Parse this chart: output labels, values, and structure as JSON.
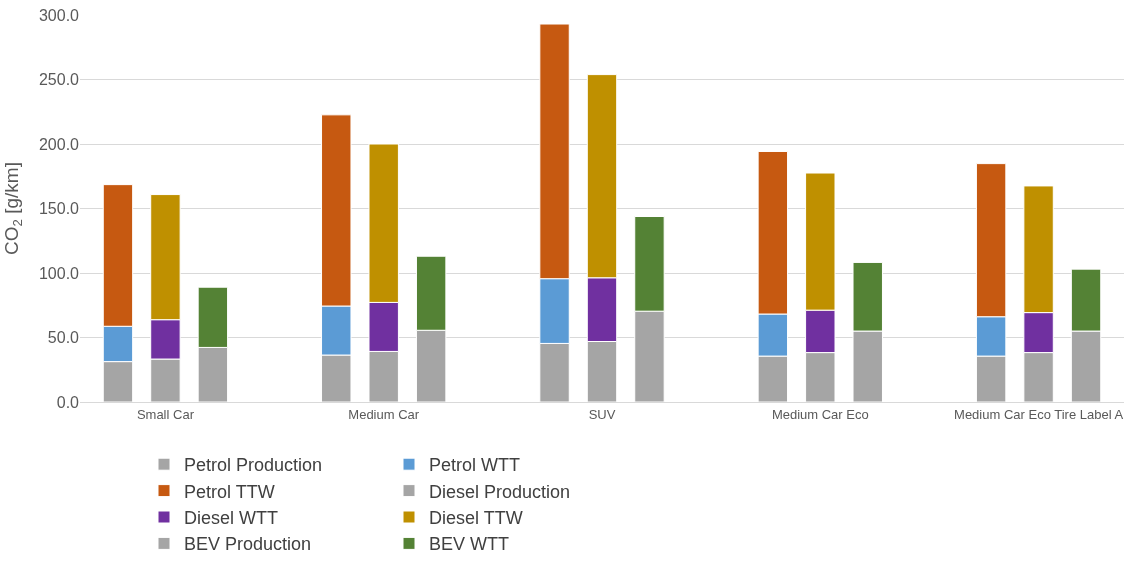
{
  "chart_data": {
    "type": "bar",
    "stacked": true,
    "ylabel": "CO$_{2}$ [g/km]",
    "categories": [
      null,
      "Small Car",
      null,
      null,
      "Medium Car",
      null,
      null,
      "SUV",
      null,
      null,
      "Medium Car Eco",
      null,
      null,
      "Medium Car Eco Tire Label A",
      null
    ],
    "ylim": [
      0,
      300
    ],
    "yticks": [
      {
        "value": 0,
        "label": "0.0"
      },
      {
        "value": 50,
        "label": "50.0"
      },
      {
        "value": 100,
        "label": "100.0"
      },
      {
        "value": 150,
        "label": "150.0"
      },
      {
        "value": 200,
        "label": "200.0"
      },
      {
        "value": 250,
        "label": "250.0"
      },
      {
        "value": 300,
        "label": "300.0"
      }
    ],
    "grid": "y",
    "legend": "bottom",
    "series": [
      {
        "name": "Petrol Production",
        "color": "#a5a5a5",
        "values": [
          31.3,
          null,
          null,
          36.4,
          null,
          null,
          45.4,
          null,
          null,
          35.6,
          null,
          null,
          35.6,
          null,
          null
        ]
      },
      {
        "name": "Petrol WTT",
        "color": "#5b9bd5",
        "values": [
          27.4,
          null,
          null,
          38.0,
          null,
          null,
          50.2,
          null,
          null,
          32.6,
          null,
          null,
          30.5,
          null,
          null
        ]
      },
      {
        "name": "Petrol TTW",
        "color": "#c65911",
        "values": [
          109.8,
          null,
          null,
          148.2,
          null,
          null,
          197.4,
          null,
          null,
          126.0,
          null,
          null,
          118.7,
          null,
          null
        ]
      },
      {
        "name": "Diesel Production",
        "color": "#a5a5a5",
        "values": [
          null,
          33.3,
          null,
          null,
          39.2,
          null,
          null,
          46.9,
          null,
          null,
          38.3,
          null,
          null,
          38.3,
          null
        ]
      },
      {
        "name": "Diesel WTT",
        "color": "#7030a0",
        "values": [
          null,
          30.5,
          null,
          null,
          38.0,
          null,
          null,
          49.4,
          null,
          null,
          32.9,
          null,
          null,
          31.0,
          null
        ]
      },
      {
        "name": "Diesel TTW",
        "color": "#bf9000",
        "values": [
          null,
          97.0,
          null,
          null,
          122.8,
          null,
          null,
          157.5,
          null,
          null,
          106.3,
          null,
          null,
          98.2,
          null
        ]
      },
      {
        "name": "BEV Production",
        "color": "#a5a5a5",
        "values": [
          null,
          null,
          42.3,
          null,
          null,
          55.6,
          null,
          null,
          70.4,
          null,
          null,
          55.0,
          null,
          null,
          55.0
        ]
      },
      {
        "name": "BEV WTT",
        "color": "#548235",
        "values": [
          null,
          null,
          46.7,
          null,
          null,
          57.4,
          null,
          null,
          73.4,
          null,
          null,
          53.2,
          null,
          null,
          48.0
        ]
      }
    ]
  }
}
